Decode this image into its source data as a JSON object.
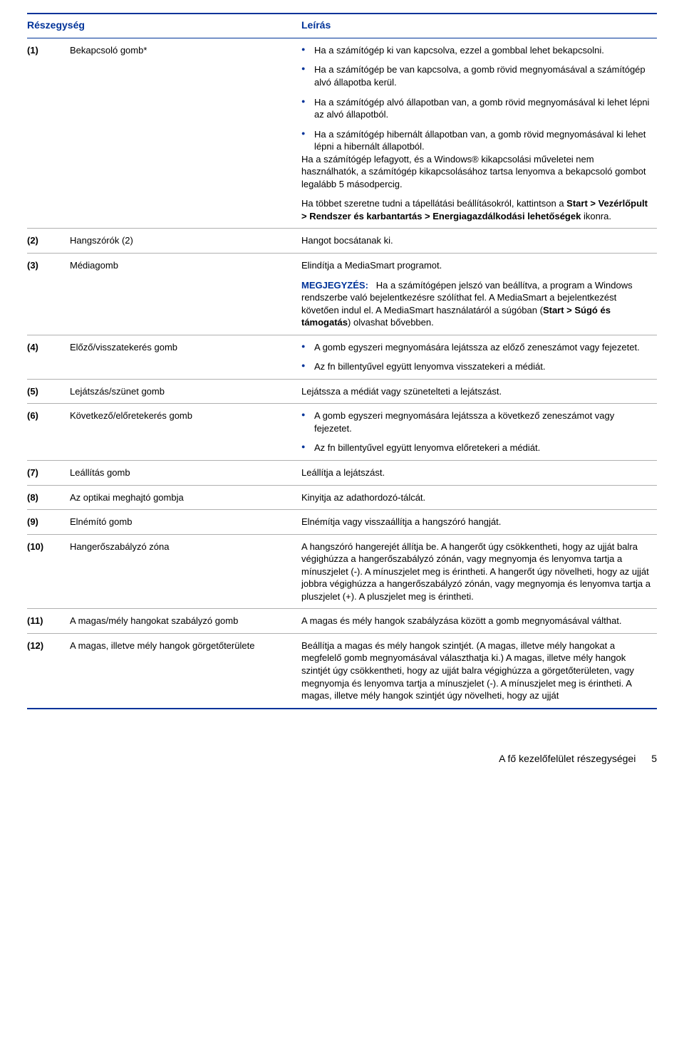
{
  "colors": {
    "accent": "#003399",
    "rule": "#b0b0b0",
    "text": "#000000",
    "bg": "#ffffff"
  },
  "typography": {
    "body_pt": 13,
    "header_pt": 14,
    "family": "Arial"
  },
  "header": {
    "col1": "Részegység",
    "col2": "Leírás"
  },
  "rows": [
    {
      "num": "(1)",
      "name": "Bekapcsoló gomb*",
      "desc": {
        "bullets": [
          "Ha a számítógép ki van kapcsolva, ezzel a gombbal lehet bekapcsolni.",
          "Ha a számítógép be van kapcsolva, a gomb rövid megnyomásával a számítógép alvó állapotba kerül.",
          "Ha a számítógép alvó állapotban van, a gomb rövid megnyomásával ki lehet lépni az alvó állapotból.",
          "Ha a számítógép hibernált állapotban van, a gomb rövid megnyomásával ki lehet lépni a hibernált állapotból."
        ],
        "paras_after": [
          {
            "plain": "Ha a számítógép lefagyott, és a Windows® kikapcsolási műveletei nem használhatók, a számítógép kikapcsolásához tartsa lenyomva a bekapcsoló gombot legalább 5 másodpercig."
          },
          {
            "prefix": "Ha többet szeretne tudni a tápellátási beállításokról, kattintson a ",
            "bold": "Start > Vezérlőpult > Rendszer és karbantartás > Energiagazdálkodási lehetőségek",
            "suffix": " ikonra."
          }
        ]
      }
    },
    {
      "num": "(2)",
      "name": "Hangszórók (2)",
      "desc": {
        "text": "Hangot bocsátanak ki."
      }
    },
    {
      "num": "(3)",
      "name": "Médiagomb",
      "desc": {
        "text": "Elindítja a MediaSmart programot.",
        "note": {
          "label": "MEGJEGYZÉS:",
          "body_before": "Ha a számítógépen jelszó van beállítva, a program a Windows rendszerbe való bejelentkezésre szólíthat fel. A MediaSmart a bejelentkezést követően indul el. A MediaSmart használatáról a súgóban (",
          "bold": "Start > Súgó és támogatás",
          "body_after": ") olvashat bővebben."
        }
      }
    },
    {
      "num": "(4)",
      "name": "Előző/visszatekerés gomb",
      "desc": {
        "bullets": [
          "A gomb egyszeri megnyomására lejátssza az előző zeneszámot vagy fejezetet.",
          {
            "prefix": "Az ",
            "span": "fn",
            "suffix": " billentyűvel együtt lenyomva visszatekeri a médiát."
          }
        ]
      }
    },
    {
      "num": "(5)",
      "name": "Lejátszás/szünet gomb",
      "desc": {
        "text": "Lejátssza a médiát vagy szünetelteti a lejátszást."
      }
    },
    {
      "num": "(6)",
      "name": "Következő/előretekerés gomb",
      "desc": {
        "bullets": [
          "A gomb egyszeri megnyomására lejátssza a következő zeneszámot vagy fejezetet.",
          {
            "prefix": "Az ",
            "span": "fn",
            "suffix": " billentyűvel együtt lenyomva előretekeri a médiát."
          }
        ]
      }
    },
    {
      "num": "(7)",
      "name": "Leállítás gomb",
      "desc": {
        "text": "Leállítja a lejátszást."
      }
    },
    {
      "num": "(8)",
      "name": "Az optikai meghajtó gombja",
      "desc": {
        "text": "Kinyitja az adathordozó-tálcát."
      }
    },
    {
      "num": "(9)",
      "name": "Elnémító gomb",
      "desc": {
        "text": "Elnémítja vagy visszaállítja a hangszóró hangját."
      }
    },
    {
      "num": "(10)",
      "name": "Hangerőszabályzó zóna",
      "desc": {
        "text": "A hangszóró hangerejét állítja be. A hangerőt úgy csökkentheti, hogy az ujját balra végighúzza a hangerőszabályzó zónán, vagy megnyomja és lenyomva tartja a mínuszjelet (-). A mínuszjelet meg is érintheti. A hangerőt úgy növelheti, hogy az ujját jobbra végighúzza a hangerőszabályzó zónán, vagy megnyomja és lenyomva tartja a pluszjelet (+). A pluszjelet meg is érintheti."
      }
    },
    {
      "num": "(11)",
      "name": "A magas/mély hangokat szabályzó gomb",
      "desc": {
        "text": "A magas és mély hangok szabályzása között a gomb megnyomásával válthat."
      }
    },
    {
      "num": "(12)",
      "name": "A magas, illetve mély hangok görgetőterülete",
      "desc": {
        "text": "Beállítja a magas és mély hangok szintjét. (A magas, illetve mély hangokat a megfelelő gomb megnyomásával választhatja ki.) A magas, illetve mély hangok szintjét úgy csökkentheti, hogy az ujját balra végighúzza a görgetőterületen, vagy megnyomja és lenyomva tartja a mínuszjelet (-). A mínuszjelet meg is érintheti. A magas, illetve mély hangok szintjét úgy növelheti, hogy az ujját"
      }
    }
  ],
  "footer": {
    "title": "A fő kezelőfelület részegységei",
    "page": "5"
  }
}
